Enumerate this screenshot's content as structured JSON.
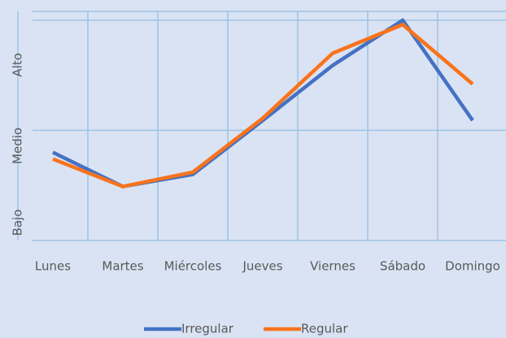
{
  "chart_data": {
    "type": "line",
    "categories": [
      "Lunes",
      "Martes",
      "Miércoles",
      "Jueves",
      "Viernes",
      "Sábado",
      "Domingo"
    ],
    "series": [
      {
        "name": "Irregular",
        "color": "#4472c4",
        "values": [
          0.8,
          0.49,
          0.6,
          1.09,
          1.59,
          2.0,
          1.09
        ]
      },
      {
        "name": "Regular",
        "color": "#f9731c",
        "values": [
          0.74,
          0.49,
          0.62,
          1.11,
          1.7,
          1.96,
          1.42
        ]
      }
    ],
    "ylim": [
      0,
      2.08
    ],
    "yticks": [
      {
        "value": 0,
        "label": "Bajo"
      },
      {
        "value": 1,
        "label": "Medio"
      },
      {
        "value": 2,
        "label": "Alto"
      }
    ],
    "grid": true,
    "legend": "bottom"
  }
}
